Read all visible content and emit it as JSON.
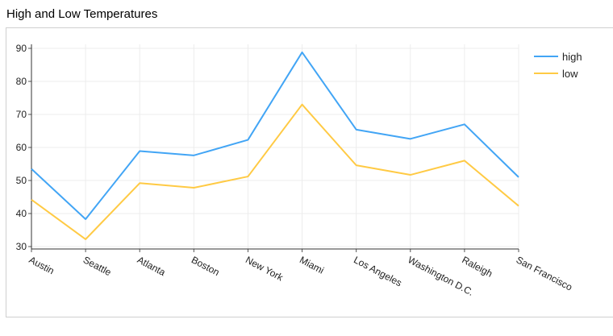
{
  "title": "High and Low Temperatures",
  "chart_data": {
    "type": "line",
    "title": "High and Low Temperatures",
    "xlabel": "",
    "ylabel": "",
    "categories": [
      "Austin",
      "Seattle",
      "Atlanta",
      "Boston",
      "New York",
      "Miami",
      "Los Angeles",
      "Washington D.C.",
      "Raleigh",
      "San Francisco"
    ],
    "series": [
      {
        "name": "high",
        "color": "#42a5f5",
        "values": [
          53.5,
          38.3,
          58.9,
          57.6,
          62.3,
          88.8,
          65.4,
          62.6,
          67.0,
          51.0
        ]
      },
      {
        "name": "low",
        "color": "#ffca44",
        "values": [
          44.2,
          32.2,
          49.2,
          47.8,
          51.2,
          73.0,
          54.6,
          51.7,
          56.0,
          42.3
        ]
      }
    ],
    "ylim": [
      30,
      90
    ],
    "yticks": [
      30,
      40,
      50,
      60,
      70,
      80,
      90
    ],
    "grid": true,
    "legend_position": "top-right"
  }
}
